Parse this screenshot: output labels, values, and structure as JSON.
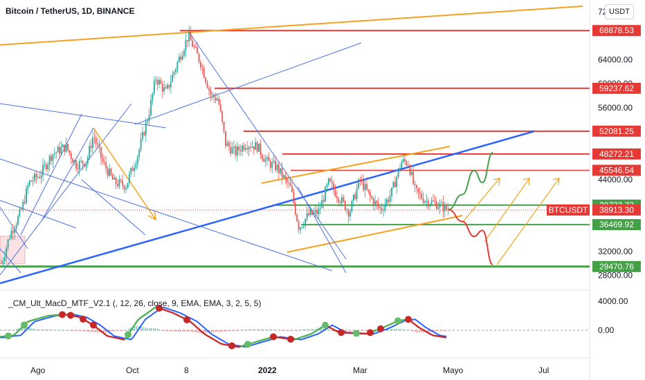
{
  "header": {
    "title": "Bitcoin / TetherUS, 1D, BINANCE",
    "unit_button": "USDT"
  },
  "indicator": {
    "title": "_CM_Ult_MacD_MTF_V2.1 (, 12, 26, close, 9, EMA, EMA, 3, 2, 5, 5)",
    "ticks": [
      "4000.00",
      "0.00"
    ]
  },
  "colors": {
    "red_level": "#e53935",
    "green_level": "#43a047",
    "orange": "#f5a11d",
    "blue_line": "#2962ff",
    "thin_blue": "#4a6fe0",
    "candle_up": "#26a69a",
    "candle_down": "#ef5350",
    "macd_green": "#4caf50",
    "macd_blue": "#2962ff",
    "macd_red": "#c62828"
  },
  "chart_data": {
    "type": "candlestick",
    "symbol": "BTCUSDT",
    "x_axis_labels": [
      "Ago",
      "Oct",
      "8",
      "2022",
      "Mar",
      "Mayo",
      "Jul"
    ],
    "y_axis_ticks": [
      "72000.00",
      "64000.00",
      "60000.00",
      "56000.00",
      "44000.00",
      "32000.00",
      "28000.00"
    ],
    "price_tags": [
      {
        "label": "68878.53",
        "value": 68878.53,
        "color": "red"
      },
      {
        "label": "59237.62",
        "value": 59237.62,
        "color": "red"
      },
      {
        "label": "52081.25",
        "value": 52081.25,
        "color": "red"
      },
      {
        "label": "48272.21",
        "value": 48272.21,
        "color": "red"
      },
      {
        "label": "45546.54",
        "value": 45546.54,
        "color": "red"
      },
      {
        "label": "39733.73",
        "value": 39733.73,
        "color": "green"
      },
      {
        "label": "38913.30",
        "value": 38913.3,
        "color": "red",
        "symbol": "BTCUSDT"
      },
      {
        "label": "36469.92",
        "value": 36469.92,
        "color": "green"
      },
      {
        "label": "29470.76",
        "value": 29470.76,
        "color": "green"
      }
    ],
    "annotations": {
      "bull_scenario": [
        39000,
        41500,
        45500,
        43500,
        48500
      ],
      "bear_scenario": [
        39000,
        37000,
        34500,
        35500,
        29800
      ]
    }
  }
}
